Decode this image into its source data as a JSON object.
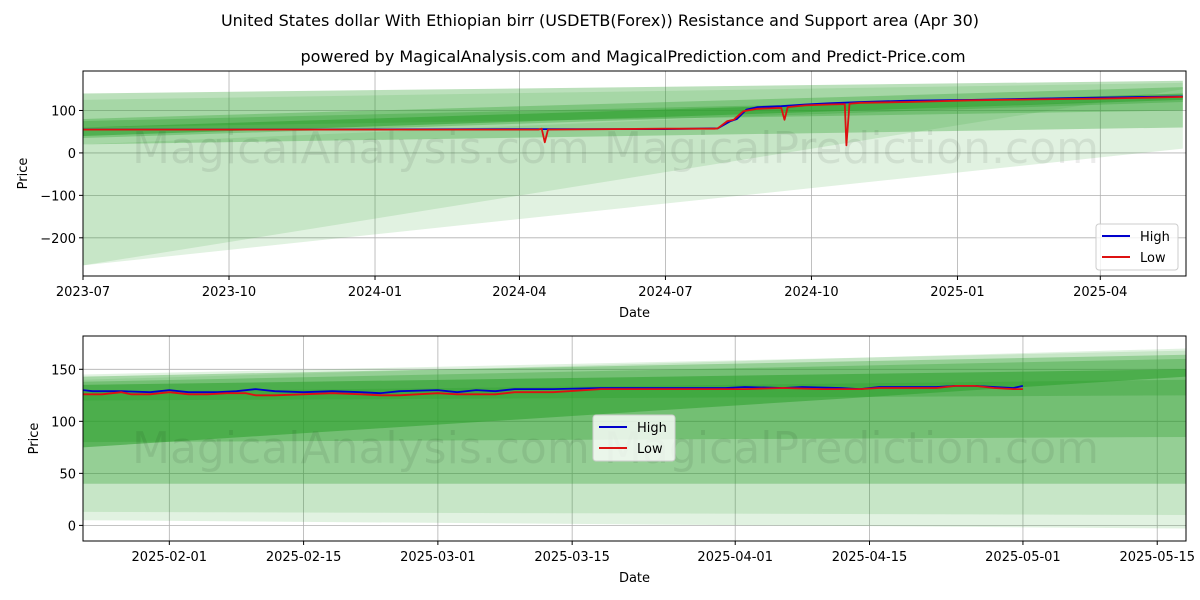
{
  "title": "United States dollar With Ethiopian birr (USDETB(Forex)) Resistance and Support area (Apr 30)",
  "subtitle": "powered by MagicalAnalysis.com and MagicalPrediction.com and Predict-Price.com",
  "watermark": {
    "left": "MagicalAnalysis.com",
    "right": "MagicalPrediction.com"
  },
  "colors": {
    "high": "#0000cc",
    "low": "#dd1111",
    "band": "#2ca02c"
  },
  "chart_data": [
    {
      "type": "line",
      "xlabel": "Date",
      "ylabel": "Price",
      "x_tick_labels": [
        "2023-07",
        "2023-10",
        "2024-01",
        "2024-04",
        "2024-07",
        "2024-10",
        "2025-01",
        "2025-04"
      ],
      "y_ticks": [
        -200,
        -100,
        0,
        100
      ],
      "ylim": [
        -290,
        193
      ],
      "grid": true,
      "legend": {
        "position": "lower-right",
        "entries": [
          "High",
          "Low"
        ]
      },
      "x_range_days": [
        0,
        695
      ],
      "x_ticks_days": [
        0,
        92,
        184,
        275,
        367,
        459,
        551,
        641
      ],
      "series": [
        {
          "name": "High",
          "points": [
            [
              0,
              55
            ],
            [
              140,
              55
            ],
            [
              280,
              56
            ],
            [
              366,
              56
            ],
            [
              400,
              58
            ],
            [
              408,
              75
            ],
            [
              412,
              80
            ],
            [
              418,
              102
            ],
            [
              425,
              108
            ],
            [
              440,
              110
            ],
            [
              455,
              114
            ],
            [
              470,
              117
            ],
            [
              490,
              120
            ],
            [
              520,
              123
            ],
            [
              560,
              125
            ],
            [
              600,
              128
            ],
            [
              640,
              130
            ],
            [
              670,
              132
            ],
            [
              693,
              133
            ]
          ]
        },
        {
          "name": "Low",
          "points": [
            [
              0,
              55
            ],
            [
              287,
              55
            ],
            [
              289,
              57
            ],
            [
              291,
              25
            ],
            [
              293,
              55
            ],
            [
              366,
              57
            ],
            [
              398,
              57
            ],
            [
              400,
              58
            ],
            [
              406,
              75
            ],
            [
              410,
              78
            ],
            [
              416,
              98
            ],
            [
              425,
              104
            ],
            [
              440,
              106
            ],
            [
              442,
              78
            ],
            [
              444,
              108
            ],
            [
              455,
              112
            ],
            [
              470,
              114
            ],
            [
              480,
              115
            ],
            [
              481,
              18
            ],
            [
              483,
              116
            ],
            [
              490,
              118
            ],
            [
              520,
              120
            ],
            [
              560,
              124
            ],
            [
              600,
              126
            ],
            [
              640,
              128
            ],
            [
              670,
              130
            ],
            [
              693,
              132
            ]
          ]
        }
      ],
      "bands": [
        {
          "x0": 0,
          "x1": 693,
          "top": [
            125,
            165
          ],
          "bot": [
            -265,
            150
          ],
          "strength": 1
        },
        {
          "x0": 0,
          "x1": 693,
          "top": [
            20,
            130
          ],
          "bot": [
            -265,
            10
          ],
          "strength": 1
        },
        {
          "x0": 0,
          "x1": 693,
          "top": [
            80,
            155
          ],
          "bot": [
            20,
            60
          ],
          "strength": 2
        },
        {
          "x0": 0,
          "x1": 693,
          "top": [
            140,
            170
          ],
          "bot": [
            60,
            100
          ],
          "strength": 2
        },
        {
          "x0": 0,
          "x1": 693,
          "top": [
            60,
            140
          ],
          "bot": [
            40,
            125
          ],
          "strength": 3
        },
        {
          "x0": 0,
          "x1": 693,
          "top": [
            75,
            135
          ],
          "bot": [
            35,
            120
          ],
          "strength": 2
        }
      ]
    },
    {
      "type": "line",
      "xlabel": "Date",
      "ylabel": "Price",
      "x_tick_labels": [
        "2025-02-01",
        "2025-02-15",
        "2025-03-01",
        "2025-03-15",
        "2025-04-01",
        "2025-04-15",
        "2025-05-01",
        "2025-05-15"
      ],
      "y_ticks": [
        0,
        50,
        100,
        150
      ],
      "ylim": [
        -15,
        182
      ],
      "grid": true,
      "legend": {
        "position": "center",
        "entries": [
          "High",
          "Low"
        ]
      },
      "x_range_days": [
        -9,
        106
      ],
      "x_ticks_days": [
        0,
        14,
        28,
        42,
        59,
        73,
        89,
        103
      ],
      "series": [
        {
          "name": "High",
          "points": [
            [
              -9,
              130
            ],
            [
              -8,
              129
            ],
            [
              -5,
              129
            ],
            [
              -2,
              128
            ],
            [
              0,
              130
            ],
            [
              2,
              128
            ],
            [
              5,
              128
            ],
            [
              7,
              129
            ],
            [
              9,
              131
            ],
            [
              11,
              129
            ],
            [
              14,
              128
            ],
            [
              17,
              129
            ],
            [
              20,
              128
            ],
            [
              22,
              127
            ],
            [
              24,
              129
            ],
            [
              28,
              130
            ],
            [
              30,
              128
            ],
            [
              32,
              130
            ],
            [
              34,
              129
            ],
            [
              36,
              131
            ],
            [
              40,
              131
            ],
            [
              45,
              132
            ],
            [
              50,
              132
            ],
            [
              55,
              132
            ],
            [
              58,
              132
            ],
            [
              60,
              133
            ],
            [
              64,
              132
            ],
            [
              66,
              133
            ],
            [
              70,
              132
            ],
            [
              72,
              131
            ],
            [
              74,
              133
            ],
            [
              80,
              133
            ],
            [
              82,
              134
            ],
            [
              84,
              134
            ],
            [
              86,
              133
            ],
            [
              88,
              132
            ],
            [
              89,
              134
            ]
          ]
        },
        {
          "name": "Low",
          "points": [
            [
              -9,
              126
            ],
            [
              -7,
              126
            ],
            [
              -5,
              128
            ],
            [
              -4,
              126
            ],
            [
              -2,
              126
            ],
            [
              0,
              128
            ],
            [
              2,
              126
            ],
            [
              4,
              126
            ],
            [
              6,
              127
            ],
            [
              8,
              127
            ],
            [
              9,
              125
            ],
            [
              11,
              125
            ],
            [
              14,
              126
            ],
            [
              17,
              127
            ],
            [
              20,
              126
            ],
            [
              22,
              125
            ],
            [
              24,
              125
            ],
            [
              28,
              127
            ],
            [
              30,
              126
            ],
            [
              34,
              126
            ],
            [
              36,
              128
            ],
            [
              40,
              128
            ],
            [
              45,
              131
            ],
            [
              50,
              131
            ],
            [
              55,
              131
            ],
            [
              60,
              131
            ],
            [
              64,
              132
            ],
            [
              68,
              131
            ],
            [
              72,
              131
            ],
            [
              74,
              132
            ],
            [
              80,
              132
            ],
            [
              82,
              134
            ],
            [
              84,
              134
            ],
            [
              86,
              132
            ],
            [
              88,
              131
            ],
            [
              89,
              131
            ]
          ]
        }
      ],
      "bands": [
        {
          "x0": -9,
          "x1": 106,
          "top": [
            140,
            170
          ],
          "bot": [
            5,
            -3
          ],
          "strength": 1
        },
        {
          "x0": -9,
          "x1": 106,
          "top": [
            145,
            168
          ],
          "bot": [
            13,
            10
          ],
          "strength": 1
        },
        {
          "x0": -9,
          "x1": 106,
          "top": [
            143,
            164
          ],
          "bot": [
            40,
            40
          ],
          "strength": 2
        },
        {
          "x0": -9,
          "x1": 106,
          "top": [
            138,
            160
          ],
          "bot": [
            80,
            85
          ],
          "strength": 2
        },
        {
          "x0": -9,
          "x1": 106,
          "top": [
            135,
            150
          ],
          "bot": [
            75,
            143
          ],
          "strength": 3
        },
        {
          "x0": -9,
          "x1": 106,
          "top": [
            128,
            140
          ],
          "bot": [
            120,
            125
          ],
          "strength": 2
        }
      ]
    }
  ]
}
